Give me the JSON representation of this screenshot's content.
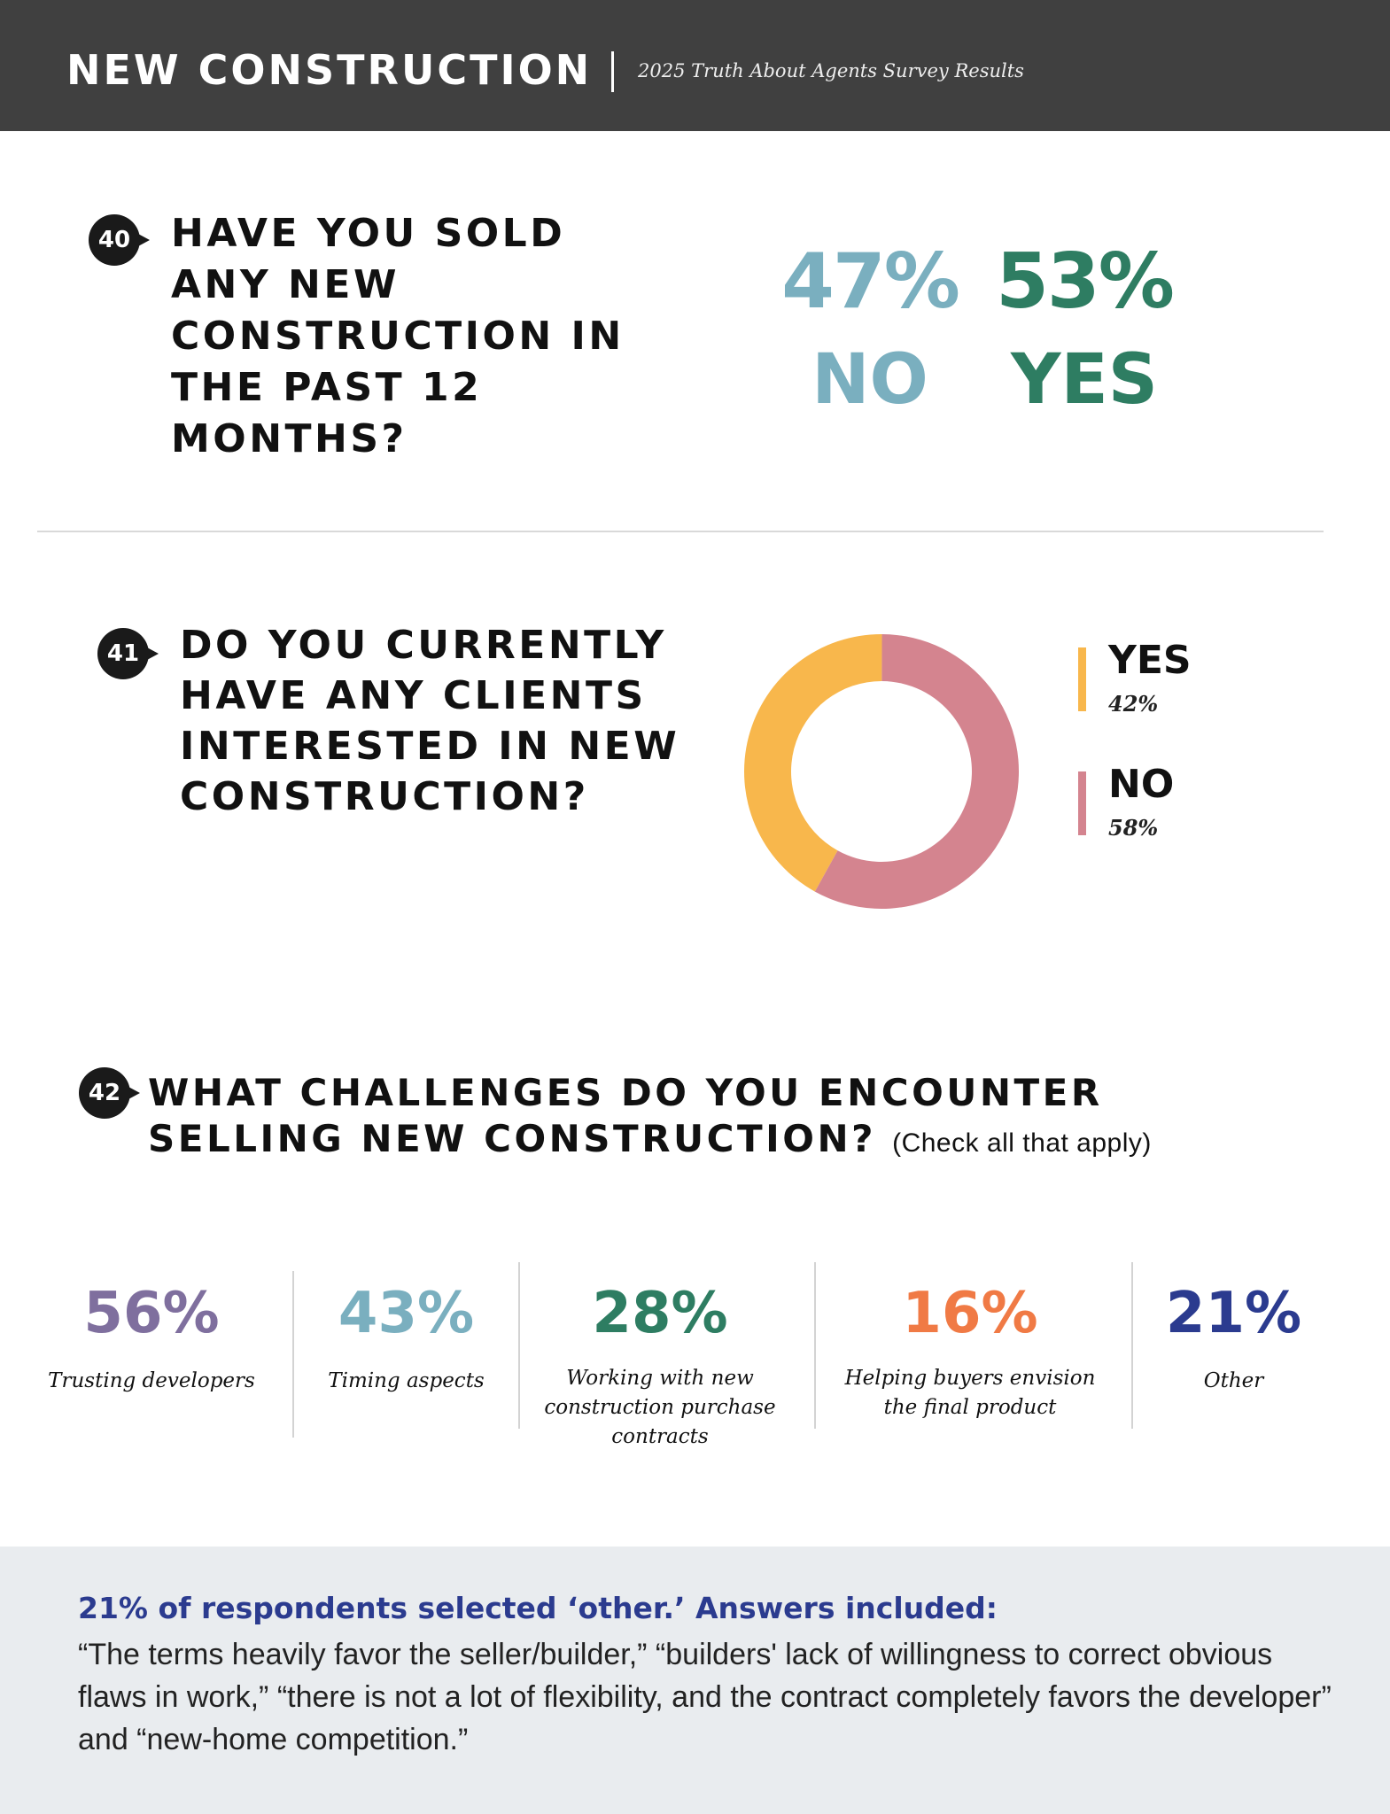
{
  "header": {
    "title": "NEW CONSTRUCTION",
    "subtitle": "2025 Truth About Agents Survey Results"
  },
  "q40": {
    "number": "40",
    "question": "HAVE YOU SOLD ANY NEW CONSTRUCTION IN THE PAST 12 MONTHS?",
    "no_pct": "47%",
    "no_label": "NO",
    "yes_pct": "53%",
    "yes_label": "YES",
    "colors": {
      "no": "#7aafbf",
      "yes": "#2e7d62"
    }
  },
  "q41": {
    "number": "41",
    "question": "DO YOU CURRENTLY HAVE ANY CLIENTS INTERESTED IN NEW CONSTRUCTION?",
    "legend": [
      {
        "label": "YES",
        "value": "42%",
        "color": "#f8b74c"
      },
      {
        "label": "NO",
        "value": "58%",
        "color": "#d4848f"
      }
    ]
  },
  "q42": {
    "number": "42",
    "question_line1": "WHAT CHALLENGES DO YOU ENCOUNTER",
    "question_line2": "SELLING NEW CONSTRUCTION?",
    "note": "(Check all that apply)",
    "stats": [
      {
        "pct": "56%",
        "desc": "Trusting developers",
        "color": "#7f6f9e"
      },
      {
        "pct": "43%",
        "desc": "Timing aspects",
        "color": "#7aafbf"
      },
      {
        "pct": "28%",
        "desc": "Working with new construction purchase contracts",
        "color": "#2e7d62"
      },
      {
        "pct": "16%",
        "desc": "Helping buyers envision the final product",
        "color": "#f07a45"
      },
      {
        "pct": "21%",
        "desc": "Other",
        "color": "#2b3b8f"
      }
    ]
  },
  "footer": {
    "heading": "21% of respondents selected ‘other.’ Answers included:",
    "body": "“The terms heavily favor the seller/builder,” “builders' lack of willingness to correct obvious flaws in work,” “there is not a lot of flexibility, and the contract completely favors the developer” and “new-home competition.”"
  },
  "chart_data": [
    {
      "type": "bar",
      "categories": [
        "NO",
        "YES"
      ],
      "values": [
        47,
        53
      ],
      "title": "HAVE YOU SOLD ANY NEW CONSTRUCTION IN THE PAST 12 MONTHS?"
    },
    {
      "type": "pie",
      "categories": [
        "YES",
        "NO"
      ],
      "values": [
        42,
        58
      ],
      "colors": [
        "#f8b74c",
        "#d4848f"
      ],
      "title": "DO YOU CURRENTLY HAVE ANY CLIENTS INTERESTED IN NEW CONSTRUCTION?",
      "legend": "right"
    },
    {
      "type": "bar",
      "categories": [
        "Trusting developers",
        "Timing aspects",
        "Working with new construction purchase contracts",
        "Helping buyers envision the final product",
        "Other"
      ],
      "values": [
        56,
        43,
        28,
        16,
        21
      ],
      "title": "WHAT CHALLENGES DO YOU ENCOUNTER SELLING NEW CONSTRUCTION?"
    }
  ]
}
